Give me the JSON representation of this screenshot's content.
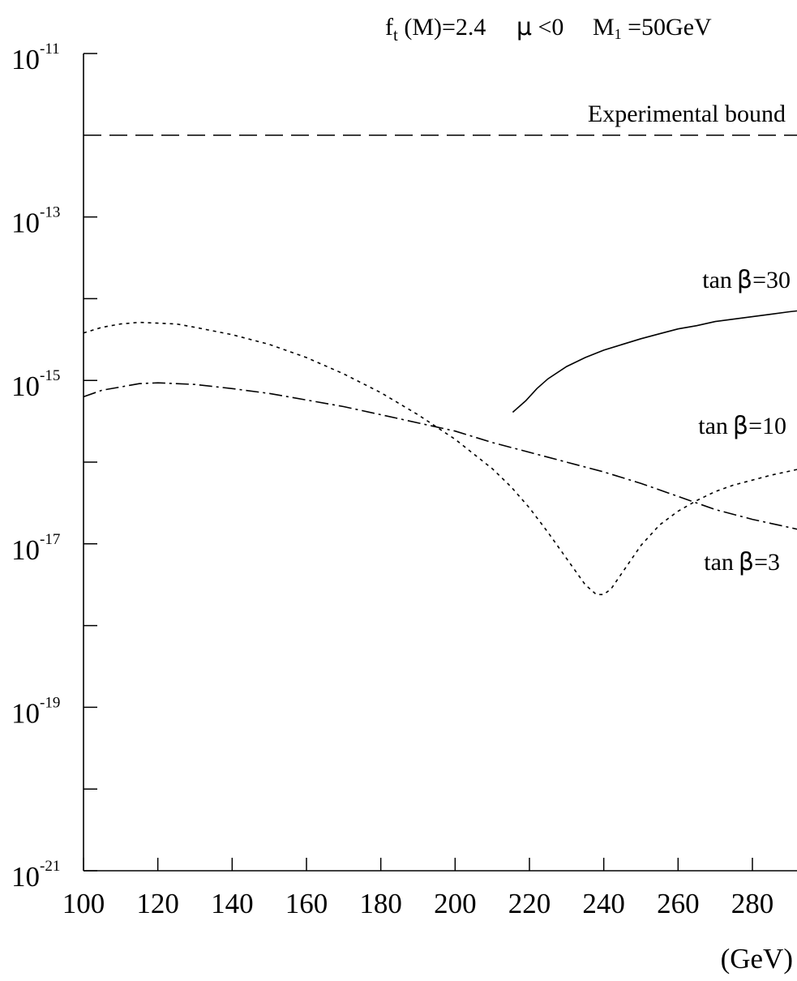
{
  "chart_data": {
    "type": "line",
    "title": "",
    "header": {
      "ft_text": "f",
      "ft_sub": "t",
      "ft_rest": " (M)=2.4",
      "mu_symbol": "μ",
      "mu_rest": " <0",
      "m1_text": "M",
      "m1_sub": "1",
      "m1_rest": " =50GeV"
    },
    "xlabel": "(GeV)",
    "ylabel": "",
    "x_scale": "linear",
    "y_scale": "log",
    "xlim": [
      100,
      292
    ],
    "ylim_log10": [
      -21,
      -11
    ],
    "grid": false,
    "x_ticks": [
      {
        "value": 100,
        "label": "100"
      },
      {
        "value": 120,
        "label": "120"
      },
      {
        "value": 140,
        "label": "140"
      },
      {
        "value": 160,
        "label": "160"
      },
      {
        "value": 180,
        "label": "180"
      },
      {
        "value": 200,
        "label": "200"
      },
      {
        "value": 220,
        "label": "220"
      },
      {
        "value": 240,
        "label": "240"
      },
      {
        "value": 260,
        "label": "260"
      },
      {
        "value": 280,
        "label": "280"
      }
    ],
    "y_ticks": [
      {
        "log10": -21,
        "base": "10",
        "exp": "-21"
      },
      {
        "log10": -19,
        "base": "10",
        "exp": "-19"
      },
      {
        "log10": -17,
        "base": "10",
        "exp": "-17"
      },
      {
        "log10": -15,
        "base": "10",
        "exp": "-15"
      },
      {
        "log10": -13,
        "base": "10",
        "exp": "-13"
      },
      {
        "log10": -11,
        "base": "10",
        "exp": "-11"
      }
    ],
    "y_minor_ticks_log10": [
      -20,
      -18,
      -16,
      -14,
      -12
    ],
    "experimental_bound": {
      "log10": -12,
      "label": "Experimental bound",
      "style": "dashed"
    },
    "series": [
      {
        "name": "tan β=30",
        "label_text": "tan",
        "label_symbol": "β",
        "label_rest": "=30",
        "style": "solid",
        "x": [
          215.5,
          219,
          222,
          225,
          230,
          235,
          240,
          245,
          250,
          255,
          260,
          265,
          270,
          275,
          280,
          285,
          290,
          292
        ],
        "log10_y": [
          -15.39,
          -15.25,
          -15.1,
          -14.98,
          -14.83,
          -14.72,
          -14.63,
          -14.56,
          -14.49,
          -14.43,
          -14.37,
          -14.33,
          -14.28,
          -14.25,
          -14.22,
          -14.19,
          -14.16,
          -14.15
        ]
      },
      {
        "name": "tan β=10",
        "label_text": "tan",
        "label_symbol": "β",
        "label_rest": "=10",
        "style": "dotted",
        "x": [
          100,
          105,
          110,
          115,
          120,
          125,
          130,
          140,
          150,
          160,
          170,
          180,
          190,
          200,
          210,
          215,
          220,
          225,
          230,
          235,
          238,
          240,
          242,
          245,
          250,
          255,
          260,
          265,
          270,
          275,
          280,
          285,
          290,
          292
        ],
        "log10_y": [
          -14.42,
          -14.35,
          -14.31,
          -14.29,
          -14.3,
          -14.31,
          -14.35,
          -14.44,
          -14.56,
          -14.72,
          -14.92,
          -15.15,
          -15.42,
          -15.72,
          -16.08,
          -16.3,
          -16.56,
          -16.86,
          -17.18,
          -17.5,
          -17.62,
          -17.62,
          -17.55,
          -17.35,
          -17.02,
          -16.77,
          -16.6,
          -16.47,
          -16.36,
          -16.28,
          -16.22,
          -16.16,
          -16.11,
          -16.09
        ]
      },
      {
        "name": "tan β=3",
        "label_text": "tan",
        "label_symbol": "β",
        "label_rest": "=3",
        "style": "dashdot",
        "x": [
          100,
          105,
          110,
          115,
          120,
          125,
          130,
          140,
          150,
          160,
          170,
          180,
          190,
          200,
          210,
          220,
          230,
          240,
          250,
          260,
          270,
          280,
          290,
          292
        ],
        "log10_y": [
          -15.2,
          -15.12,
          -15.08,
          -15.04,
          -15.03,
          -15.04,
          -15.05,
          -15.1,
          -15.16,
          -15.24,
          -15.32,
          -15.42,
          -15.52,
          -15.62,
          -15.76,
          -15.88,
          -16.0,
          -16.12,
          -16.26,
          -16.42,
          -16.58,
          -16.7,
          -16.8,
          -16.82
        ]
      }
    ]
  }
}
